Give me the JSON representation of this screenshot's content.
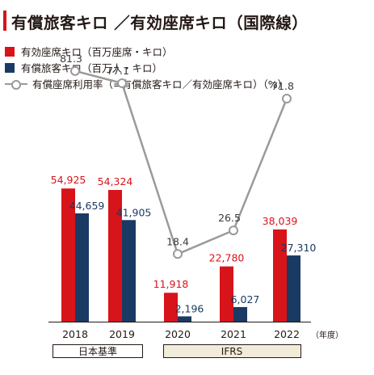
{
  "title": "有償旅客キロ ／有効座席キロ（国際線）",
  "legend": {
    "ask": "有効座席キロ（百万座席・キロ）",
    "rpk": "有償旅客キロ（百万人・キロ）",
    "lf": "有償座席利用率（=有償旅客キロ／有効座席キロ）（%）"
  },
  "colors": {
    "ask": "#d7141a",
    "rpk": "#1a3a64",
    "lf": "#9a9a9a",
    "axis": "#231815"
  },
  "chart_data": {
    "type": "bar",
    "categories": [
      "2018",
      "2019",
      "2020",
      "2021",
      "2022"
    ],
    "series": [
      {
        "name": "有効座席キロ（百万座席・キロ）",
        "values": [
          54925,
          54324,
          11918,
          22780,
          38039
        ],
        "labels": [
          "54,925",
          "54,324",
          "11,918",
          "22,780",
          "38,039"
        ]
      },
      {
        "name": "有償旅客キロ（百万人・キロ）",
        "values": [
          44659,
          41905,
          2196,
          6027,
          27310
        ],
        "labels": [
          "44,659",
          "41,905",
          "2,196",
          "6,027",
          "27,310"
        ]
      },
      {
        "name": "有償座席利用率（=有償旅客キロ／有効座席キロ）（%）",
        "type": "line",
        "values": [
          81.3,
          77.1,
          18.4,
          26.5,
          71.8
        ],
        "labels": [
          "81.3",
          "77.1",
          "18.4",
          "26.5",
          "71.8"
        ]
      }
    ],
    "x_unit": "（年度）",
    "groups": [
      {
        "label": "日本基準",
        "categories": [
          "2018",
          "2019"
        ]
      },
      {
        "label": "IFRS",
        "categories": [
          "2020",
          "2021",
          "2022"
        ]
      }
    ]
  }
}
